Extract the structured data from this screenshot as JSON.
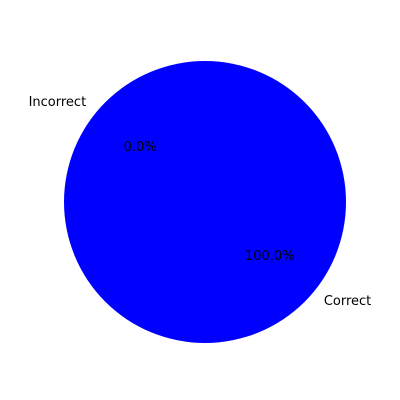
{
  "chart_data": {
    "type": "pie",
    "title": "",
    "start_angle_deg": 140,
    "direction": "counterclockwise",
    "slices": [
      {
        "label": "Correct",
        "value": 100.0,
        "percent_label": "100.0%",
        "color": "#0000ff"
      },
      {
        "label": "Incorrect",
        "value": 0.0,
        "percent_label": "0.0%",
        "color": "#ff0000"
      }
    ],
    "legend": "none"
  }
}
